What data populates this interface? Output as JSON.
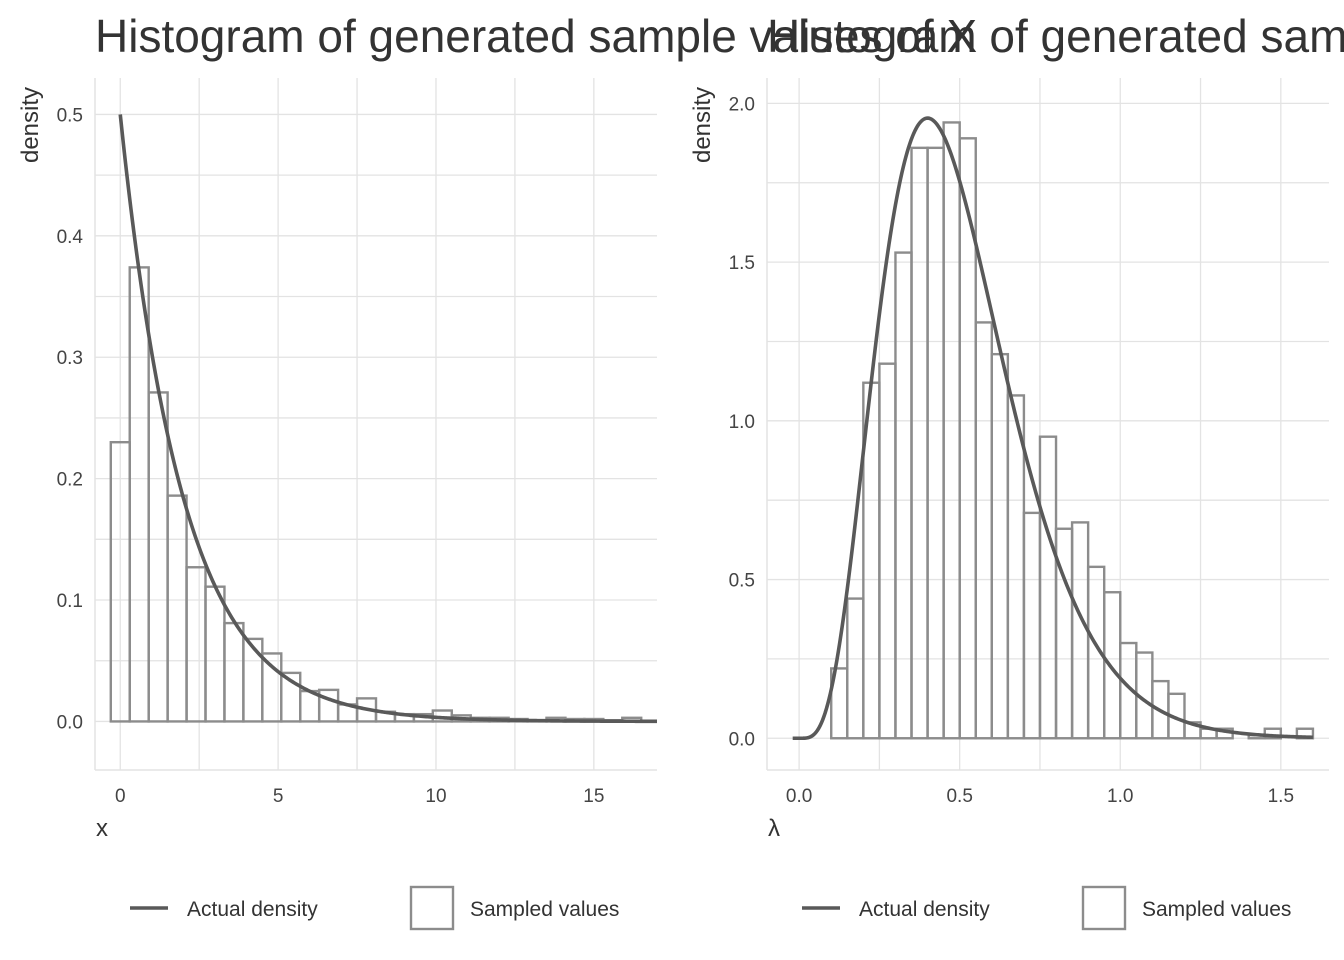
{
  "chart_data": [
    {
      "type": "bar",
      "title": "Histogram of generated sample values of X",
      "xlabel": "x",
      "ylabel": "density",
      "xlim": [
        -0.8,
        17.0
      ],
      "ylim": [
        -0.04,
        0.53
      ],
      "x_ticks": [
        "0",
        "5",
        "10",
        "15"
      ],
      "y_ticks": [
        "0.0",
        "0.1",
        "0.2",
        "0.3",
        "0.4",
        "0.5"
      ],
      "bin_width": 0.6,
      "bin_start": -0.3,
      "values": [
        0.23,
        0.374,
        0.271,
        0.186,
        0.127,
        0.111,
        0.081,
        0.068,
        0.056,
        0.04,
        0.025,
        0.026,
        0.014,
        0.019,
        0.008,
        0.006,
        0.006,
        0.009,
        0.005,
        0.003,
        0.003,
        0.002,
        0.001,
        0.003,
        0.002,
        0.002,
        0.001,
        0.003,
        0.0,
        0.001,
        0.0
      ],
      "density_curve": {
        "name": "Actual density",
        "distribution": "exponential",
        "rate": 0.5
      },
      "legend": [
        "Actual density",
        "Sampled values"
      ],
      "legend_position": "bottom",
      "grid": true
    },
    {
      "type": "bar",
      "title": "Histogram of generated sample values of λ",
      "xlabel": "λ",
      "ylabel": "density",
      "xlim": [
        -0.1,
        1.65
      ],
      "ylim": [
        -0.1,
        2.08
      ],
      "x_ticks": [
        "0.0",
        "0.5",
        "1.0",
        "1.5"
      ],
      "y_ticks": [
        "0.0",
        "0.5",
        "1.0",
        "1.5",
        "2.0"
      ],
      "bin_width": 0.05,
      "bin_start": 0.1,
      "values": [
        0.22,
        0.44,
        1.12,
        1.18,
        1.53,
        1.86,
        1.86,
        1.94,
        1.89,
        1.31,
        1.21,
        1.08,
        0.71,
        0.95,
        0.66,
        0.68,
        0.54,
        0.46,
        0.3,
        0.27,
        0.18,
        0.14,
        0.05,
        0.03,
        0.03,
        0.0,
        0.01,
        0.03,
        0.0,
        0.03
      ],
      "density_curve": {
        "name": "Actual density",
        "distribution": "gamma",
        "shape": 5,
        "rate": 10
      },
      "legend": [
        "Actual density",
        "Sampled values"
      ],
      "legend_position": "bottom",
      "grid": true
    }
  ]
}
